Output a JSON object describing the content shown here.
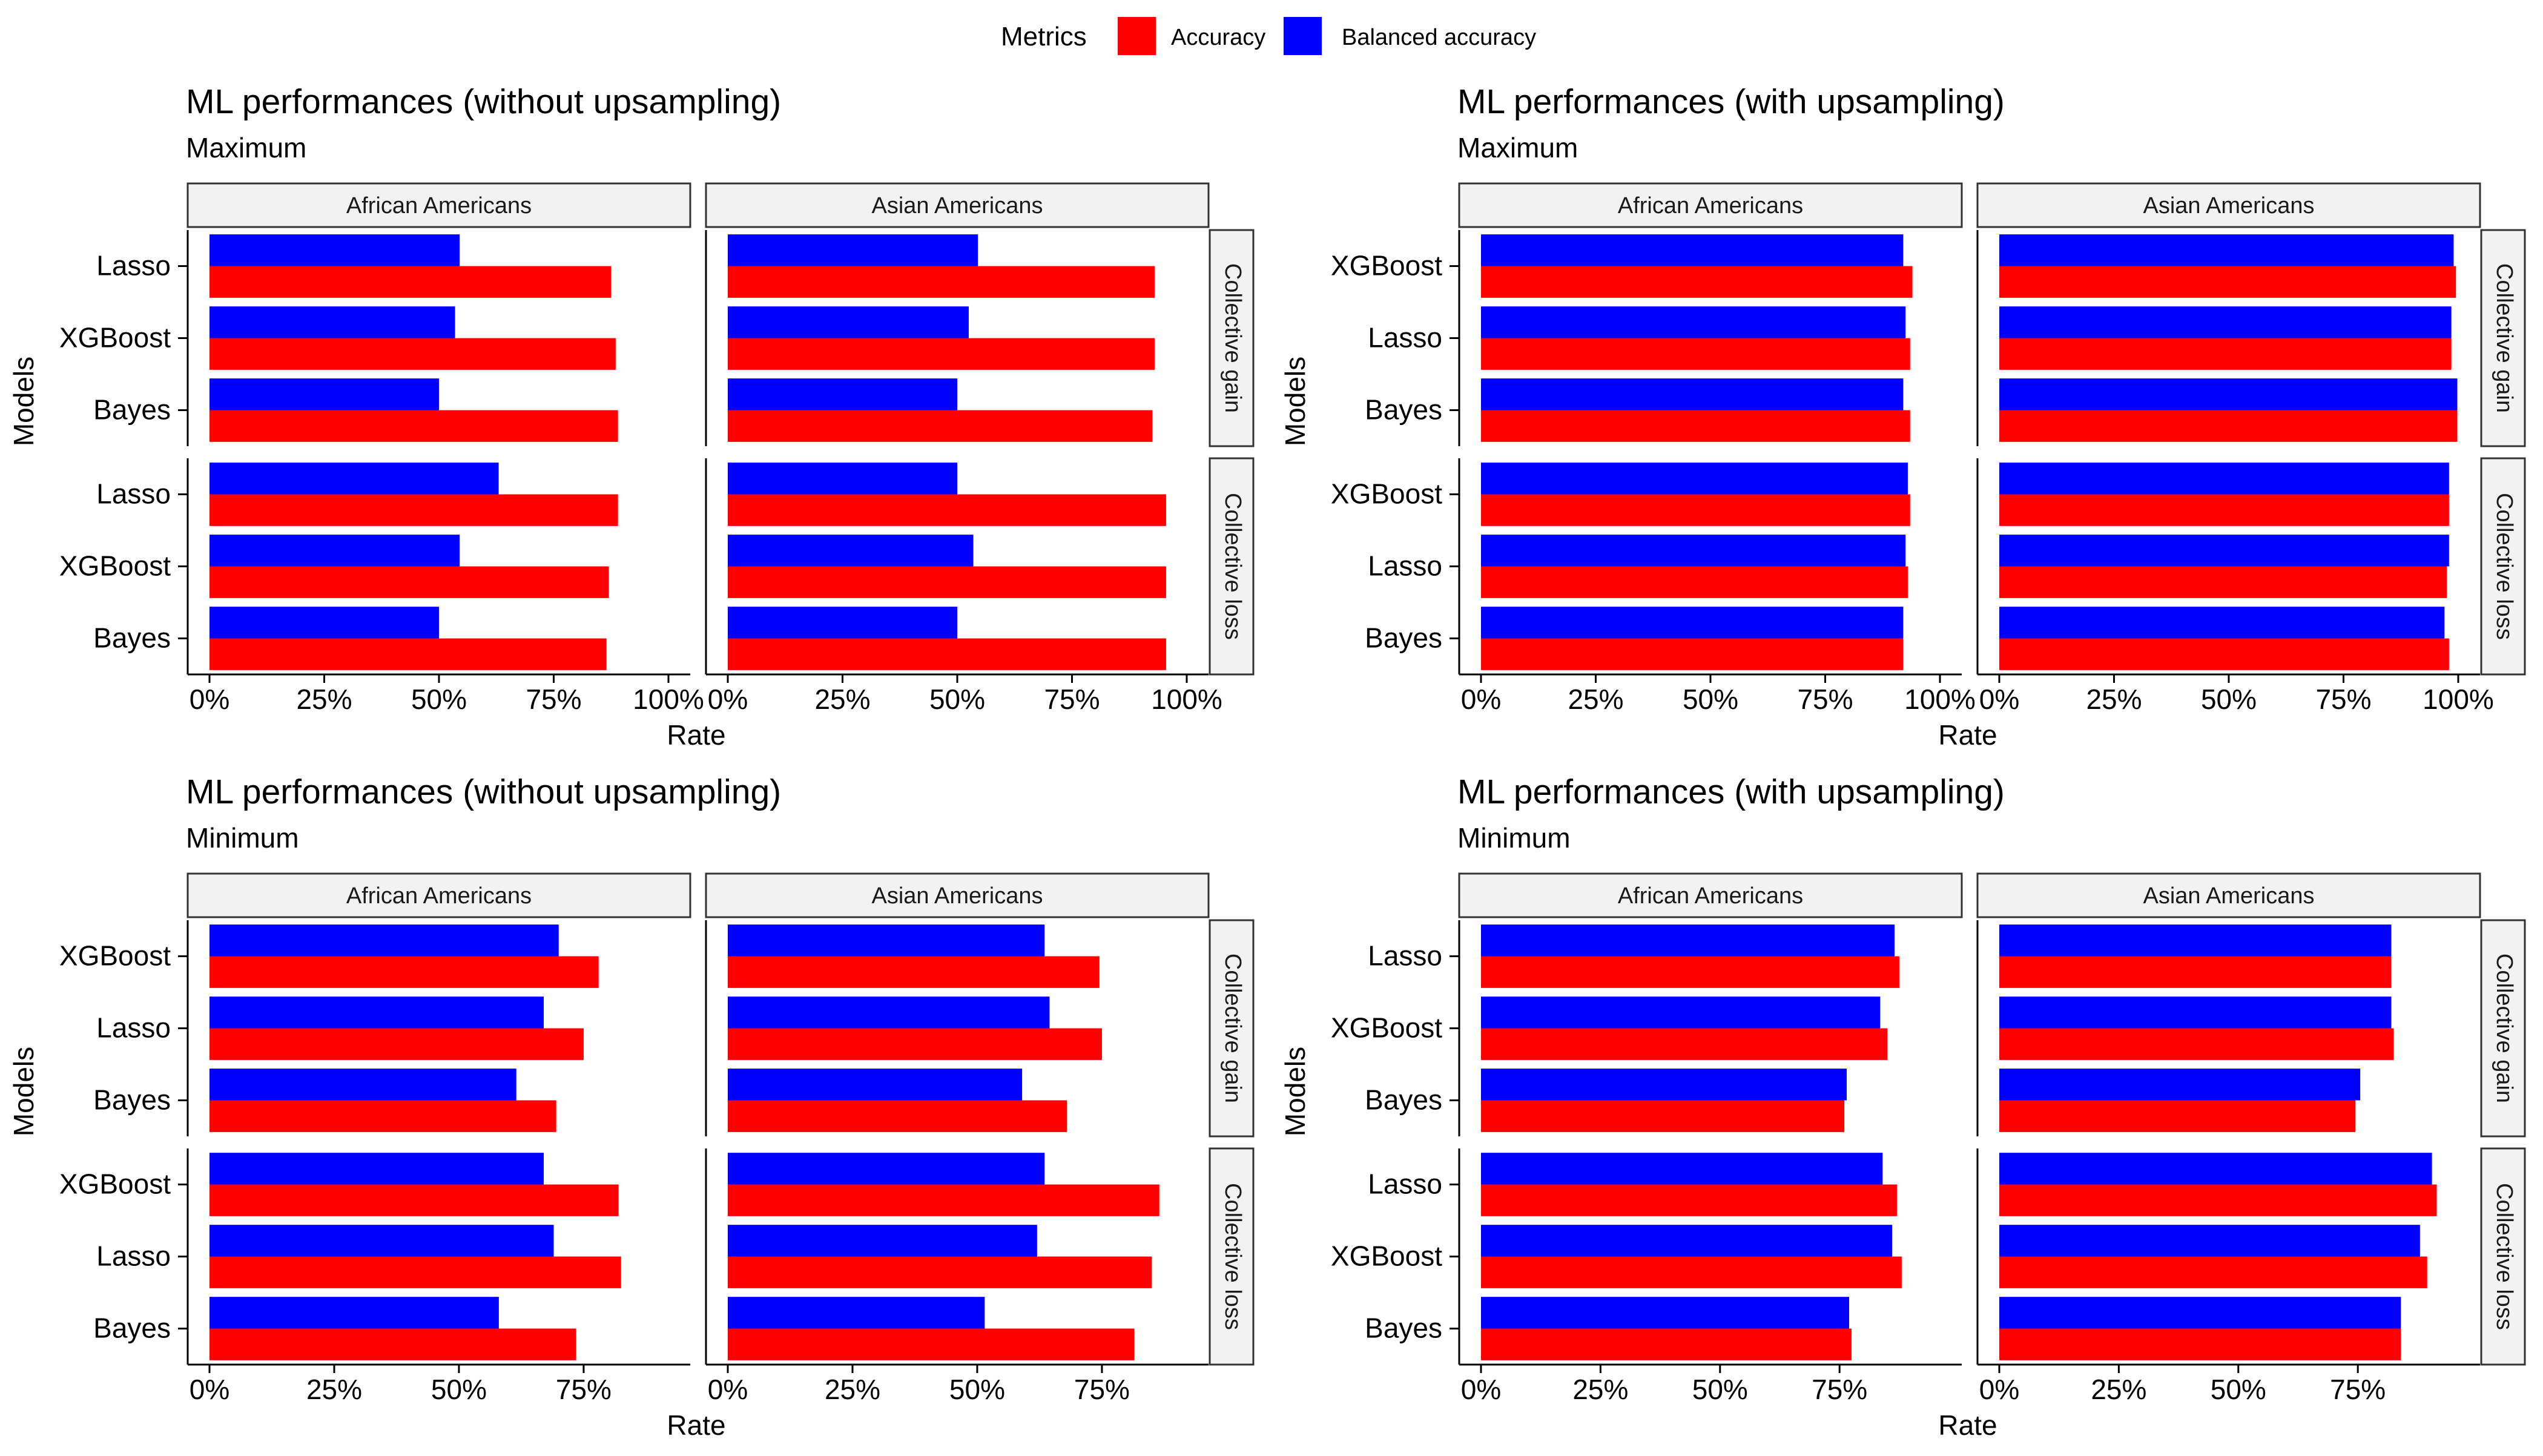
{
  "legend": {
    "title": "Metrics",
    "items": [
      {
        "label": "Accuracy",
        "color": "#ff0000"
      },
      {
        "label": "Balanced accuracy",
        "color": "#0000ff"
      }
    ]
  },
  "chart_data": [
    {
      "type": "bar",
      "orientation": "horizontal",
      "title": "ML performances (without upsampling)",
      "subtitle": "Maximum",
      "xlabel": "Rate",
      "ylabel": "Models",
      "xlim": [
        0,
        1
      ],
      "xticks": [
        "0%",
        "25%",
        "50%",
        "75%",
        "100%"
      ],
      "xtick_values": [
        0,
        0.25,
        0.5,
        0.75,
        1.0
      ],
      "columns": [
        "African Americans",
        "Asian Americans"
      ],
      "rows": [
        {
          "label": "Collective gain",
          "models": [
            "Lasso",
            "XGBoost",
            "Bayes"
          ],
          "panels": [
            {
              "accuracy": [
                0.875,
                0.885,
                0.89
              ],
              "balanced_accuracy": [
                0.545,
                0.535,
                0.5
              ]
            },
            {
              "accuracy": [
                0.93,
                0.93,
                0.925
              ],
              "balanced_accuracy": [
                0.545,
                0.525,
                0.5
              ]
            }
          ]
        },
        {
          "label": "Collective loss",
          "models": [
            "Lasso",
            "XGBoost",
            "Bayes"
          ],
          "panels": [
            {
              "accuracy": [
                0.89,
                0.87,
                0.865
              ],
              "balanced_accuracy": [
                0.63,
                0.545,
                0.5
              ]
            },
            {
              "accuracy": [
                0.955,
                0.955,
                0.955
              ],
              "balanced_accuracy": [
                0.5,
                0.535,
                0.5
              ]
            }
          ]
        }
      ]
    },
    {
      "type": "bar",
      "orientation": "horizontal",
      "title": "ML performances (with upsampling)",
      "subtitle": "Maximum",
      "xlabel": "Rate",
      "ylabel": "Models",
      "xlim": [
        0,
        1
      ],
      "xticks": [
        "0%",
        "25%",
        "50%",
        "75%",
        "100%"
      ],
      "xtick_values": [
        0,
        0.25,
        0.5,
        0.75,
        1.0
      ],
      "columns": [
        "African Americans",
        "Asian Americans"
      ],
      "rows": [
        {
          "label": "Collective gain",
          "models": [
            "XGBoost",
            "Lasso",
            "Bayes"
          ],
          "panels": [
            {
              "accuracy": [
                0.94,
                0.935,
                0.935
              ],
              "balanced_accuracy": [
                0.92,
                0.925,
                0.92
              ]
            },
            {
              "accuracy": [
                0.995,
                0.985,
                0.998
              ],
              "balanced_accuracy": [
                0.99,
                0.985,
                0.998
              ]
            }
          ]
        },
        {
          "label": "Collective loss",
          "models": [
            "XGBoost",
            "Lasso",
            "Bayes"
          ],
          "panels": [
            {
              "accuracy": [
                0.935,
                0.93,
                0.92
              ],
              "balanced_accuracy": [
                0.93,
                0.925,
                0.92
              ]
            },
            {
              "accuracy": [
                0.98,
                0.975,
                0.98
              ],
              "balanced_accuracy": [
                0.98,
                0.98,
                0.97
              ]
            }
          ]
        }
      ]
    },
    {
      "type": "bar",
      "orientation": "horizontal",
      "title": "ML performances (without upsampling)",
      "subtitle": "Minimum",
      "xlabel": "Rate",
      "ylabel": "Models",
      "xlim": [
        0,
        0.92
      ],
      "xticks": [
        "0%",
        "25%",
        "50%",
        "75%"
      ],
      "xtick_values": [
        0,
        0.25,
        0.5,
        0.75
      ],
      "columns": [
        "African Americans",
        "Asian Americans"
      ],
      "rows": [
        {
          "label": "Collective gain",
          "models": [
            "XGBoost",
            "Lasso",
            "Bayes"
          ],
          "panels": [
            {
              "accuracy": [
                0.78,
                0.75,
                0.695
              ],
              "balanced_accuracy": [
                0.7,
                0.67,
                0.615
              ]
            },
            {
              "accuracy": [
                0.745,
                0.75,
                0.68
              ],
              "balanced_accuracy": [
                0.635,
                0.645,
                0.59
              ]
            }
          ]
        },
        {
          "label": "Collective loss",
          "models": [
            "XGBoost",
            "Lasso",
            "Bayes"
          ],
          "panels": [
            {
              "accuracy": [
                0.82,
                0.825,
                0.735
              ],
              "balanced_accuracy": [
                0.67,
                0.69,
                0.58
              ]
            },
            {
              "accuracy": [
                0.865,
                0.85,
                0.815
              ],
              "balanced_accuracy": [
                0.635,
                0.62,
                0.515
              ]
            }
          ]
        }
      ]
    },
    {
      "type": "bar",
      "orientation": "horizontal",
      "title": "ML performances (with upsampling)",
      "subtitle": "Minimum",
      "xlabel": "Rate",
      "ylabel": "Models",
      "xlim": [
        0,
        0.96
      ],
      "xticks": [
        "0%",
        "25%",
        "50%",
        "75%"
      ],
      "xtick_values": [
        0,
        0.25,
        0.5,
        0.75
      ],
      "columns": [
        "African Americans",
        "Asian Americans"
      ],
      "rows": [
        {
          "label": "Collective gain",
          "models": [
            "Lasso",
            "XGBoost",
            "Bayes"
          ],
          "panels": [
            {
              "accuracy": [
                0.875,
                0.85,
                0.76
              ],
              "balanced_accuracy": [
                0.865,
                0.835,
                0.765
              ]
            },
            {
              "accuracy": [
                0.82,
                0.825,
                0.745
              ],
              "balanced_accuracy": [
                0.82,
                0.82,
                0.755
              ]
            }
          ]
        },
        {
          "label": "Collective loss",
          "models": [
            "Lasso",
            "XGBoost",
            "Bayes"
          ],
          "panels": [
            {
              "accuracy": [
                0.87,
                0.88,
                0.775
              ],
              "balanced_accuracy": [
                0.84,
                0.86,
                0.77
              ]
            },
            {
              "accuracy": [
                0.915,
                0.895,
                0.84
              ],
              "balanced_accuracy": [
                0.905,
                0.88,
                0.84
              ]
            }
          ]
        }
      ]
    }
  ]
}
